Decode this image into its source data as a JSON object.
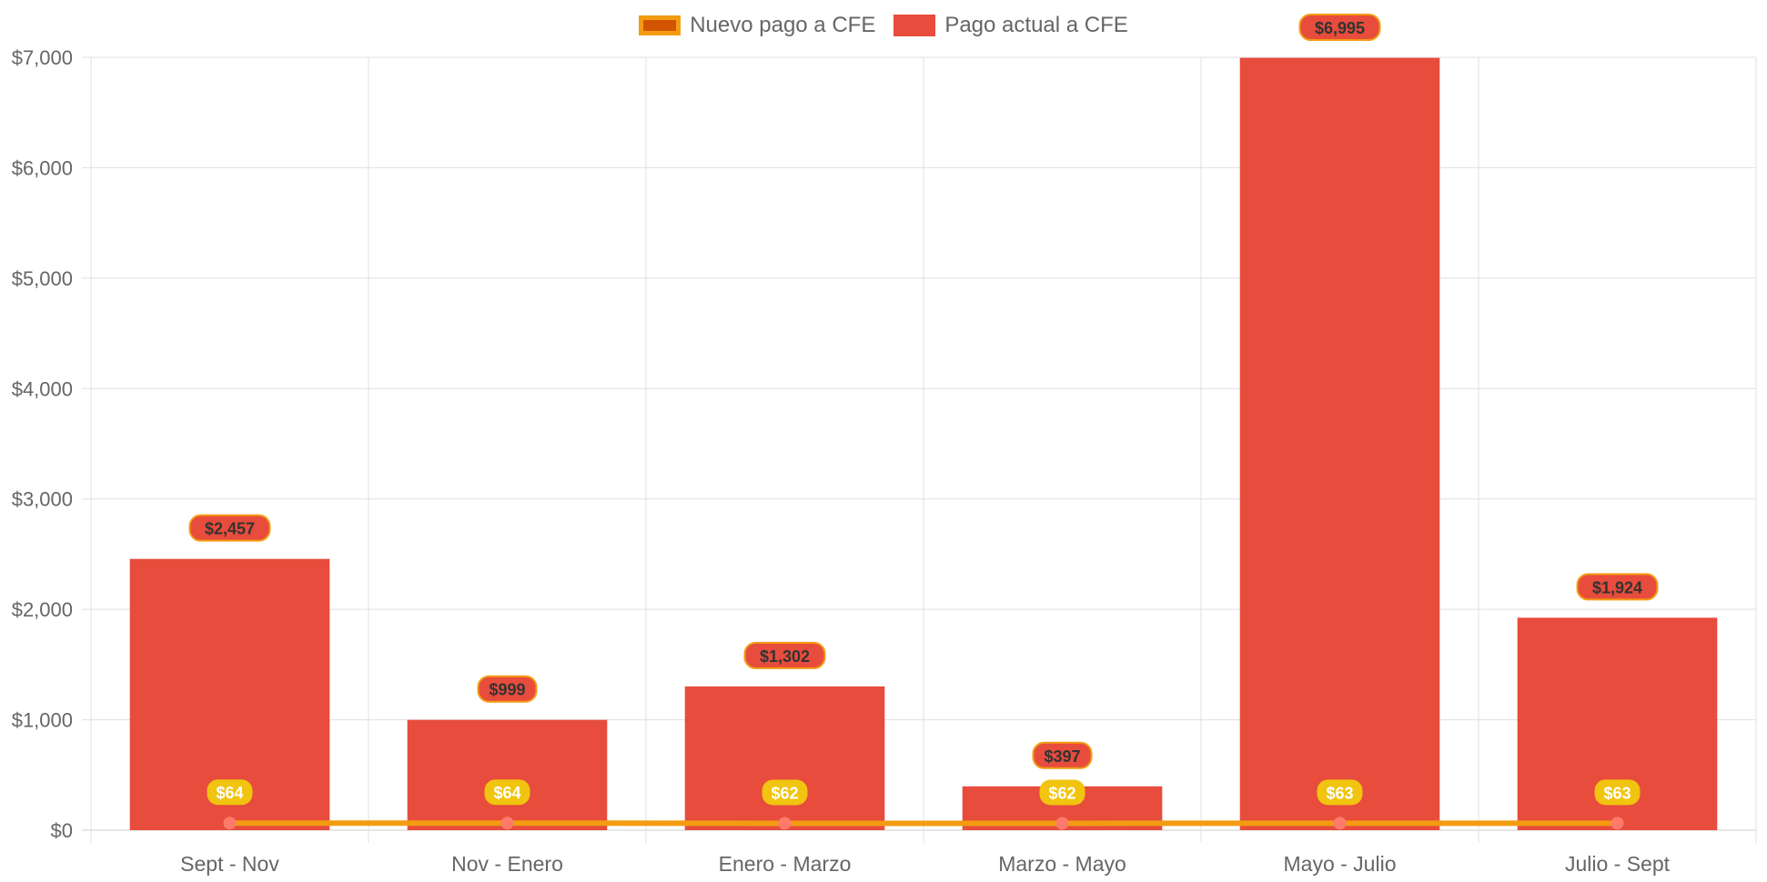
{
  "chart_data": {
    "type": "bar",
    "categories": [
      "Sept - Nov",
      "Nov - Enero",
      "Enero - Marzo",
      "Marzo - Mayo",
      "Mayo - Julio",
      "Julio - Sept"
    ],
    "series": [
      {
        "name": "Pago actual a CFE",
        "chart_type": "bar",
        "values": [
          2457,
          999,
          1302,
          397,
          6995,
          1924
        ],
        "labels": [
          "$2,457",
          "$999",
          "$1,302",
          "$397",
          "$6,995",
          "$1,924"
        ],
        "color": "#e74c3c"
      },
      {
        "name": "Nuevo pago a CFE",
        "chart_type": "line",
        "values": [
          64,
          64,
          62,
          62,
          63,
          63
        ],
        "labels": [
          "$64",
          "$64",
          "$62",
          "$62",
          "$63",
          "$63"
        ],
        "color": "#f39c12",
        "fill_color": "#d35400"
      }
    ],
    "legend_order": [
      "Nuevo pago a CFE",
      "Pago actual a CFE"
    ],
    "ylim": [
      0,
      7000
    ],
    "yticks": [
      "$0",
      "$1,000",
      "$2,000",
      "$3,000",
      "$4,000",
      "$5,000",
      "$6,000",
      "$7,000"
    ],
    "xlabel": "",
    "ylabel": "",
    "title": "",
    "legend_position": "top",
    "grid": true,
    "colors": {
      "bar": "#e74c3c",
      "line": "#f39c12",
      "line_point": "#ff7a6b",
      "bar_label_bg": "#e74c3c",
      "bar_label_border": "#f39c12",
      "bar_label_text": "#333333",
      "line_label_bg": "#f1c40f",
      "line_label_text": "#ffffff",
      "grid": "#e0e0e0",
      "tick_text": "#666666"
    }
  }
}
